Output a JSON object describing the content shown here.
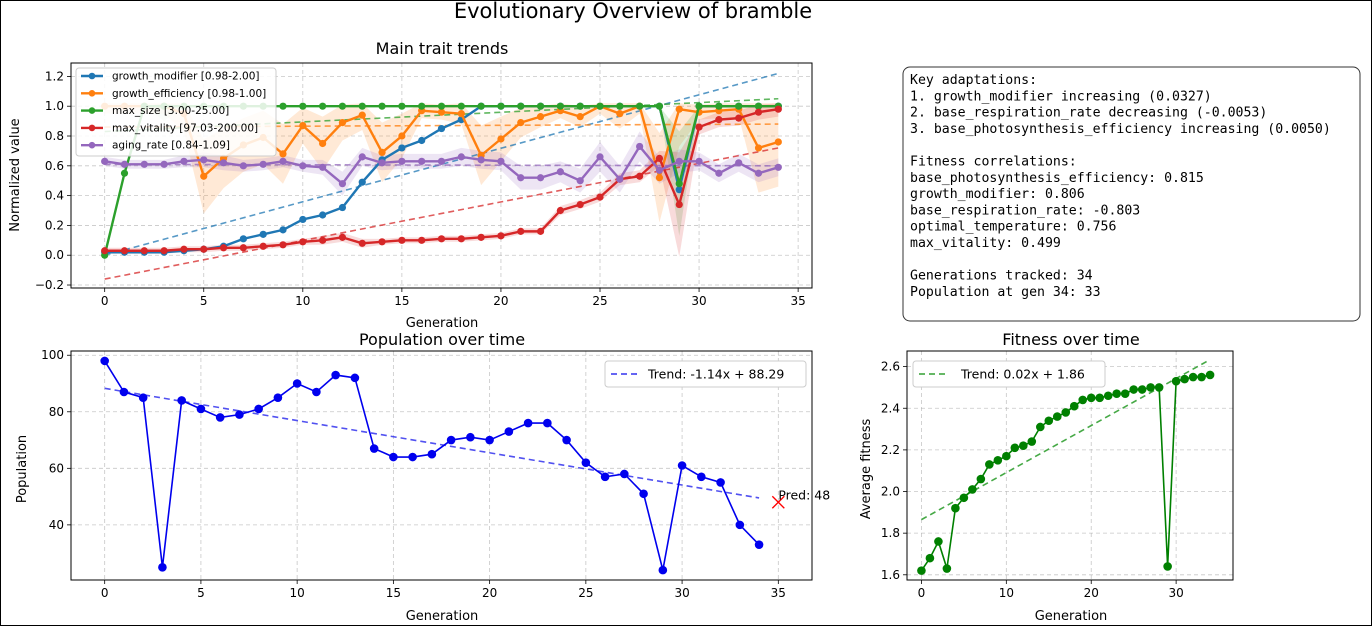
{
  "figure": {
    "title": "Evolutionary Overview of bramble"
  },
  "colors": {
    "blue": "#1f77b4",
    "orange": "#ff7f0e",
    "green": "#2ca02c",
    "red": "#d62728",
    "purple": "#9467bd",
    "pop": "#0000ee",
    "fit": "#008000"
  },
  "summary_lines": [
    "Key adaptations:",
    "1. growth_modifier increasing (0.0327)",
    "2. base_respiration_rate decreasing (-0.0053)",
    "3. base_photosynthesis_efficiency increasing (0.0050)",
    "",
    "Fitness correlations:",
    "base_photosynthesis_efficiency: 0.815",
    "growth_modifier: 0.806",
    "base_respiration_rate: -0.803",
    "optimal_temperature: 0.756",
    "max_vitality: 0.499",
    "",
    "Generations tracked: 34",
    "Population at gen 34: 33"
  ],
  "chart_data": [
    {
      "type": "line",
      "title": "Main trait trends",
      "xlabel": "Generation",
      "ylabel": "Normalized value",
      "xlim": [
        -1.7,
        35.7
      ],
      "ylim": [
        -0.22,
        1.29
      ],
      "xticks": [
        0,
        5,
        10,
        15,
        20,
        25,
        30,
        35
      ],
      "yticks": [
        -0.2,
        0.0,
        0.2,
        0.4,
        0.6,
        0.8,
        1.0,
        1.2
      ],
      "ytick_labels": [
        "−0.2",
        "0.0",
        "0.2",
        "0.4",
        "0.6",
        "0.8",
        "1.0",
        "1.2"
      ],
      "grid": true,
      "legend": "upper-left",
      "x": [
        0,
        1,
        2,
        3,
        4,
        5,
        6,
        7,
        8,
        9,
        10,
        11,
        12,
        13,
        14,
        15,
        16,
        17,
        18,
        19,
        20,
        21,
        22,
        23,
        24,
        25,
        26,
        27,
        28,
        29,
        30,
        31,
        32,
        33,
        34
      ],
      "series": [
        {
          "name": "growth_modifier [0.98-2.00]",
          "color": "#1f77b4",
          "values": [
            0.02,
            0.02,
            0.02,
            0.02,
            0.03,
            0.04,
            0.06,
            0.11,
            0.14,
            0.17,
            0.24,
            0.27,
            0.32,
            0.49,
            0.64,
            0.72,
            0.77,
            0.85,
            0.91,
            1.0,
            1.0,
            1.0,
            1.0,
            1.0,
            1.0,
            1.0,
            1.0,
            1.0,
            1.0,
            0.44,
            1.0,
            1.0,
            1.0,
            1.0,
            1.0
          ],
          "trend": [
            0.0,
            1.22
          ]
        },
        {
          "name": "growth_efficiency [0.98-1.00]",
          "color": "#ff7f0e",
          "values": [
            1.0,
            1.0,
            1.0,
            1.0,
            0.95,
            0.53,
            0.65,
            0.74,
            0.79,
            0.68,
            0.87,
            0.75,
            0.89,
            0.94,
            0.69,
            0.8,
            0.97,
            0.96,
            0.95,
            0.67,
            0.78,
            0.89,
            0.93,
            0.97,
            0.93,
            1.0,
            0.95,
            1.0,
            0.52,
            0.98,
            0.96,
            0.97,
            0.98,
            0.72,
            0.76
          ],
          "band": [
            0.05,
            0.05,
            0.05,
            0.05,
            0.12,
            0.25,
            0.2,
            0.18,
            0.18,
            0.2,
            0.12,
            0.18,
            0.12,
            0.1,
            0.2,
            0.15,
            0.05,
            0.05,
            0.07,
            0.2,
            0.15,
            0.1,
            0.07,
            0.05,
            0.07,
            0.05,
            0.1,
            0.05,
            0.3,
            0.25,
            0.05,
            0.05,
            0.05,
            0.3,
            0.3
          ],
          "trend": [
            0.86,
            0.88
          ]
        },
        {
          "name": "max_size [3.00-25.00]",
          "color": "#2ca02c",
          "values": [
            0.0,
            0.55,
            1.0,
            1.0,
            1.0,
            1.0,
            1.0,
            1.0,
            1.0,
            1.0,
            1.0,
            1.0,
            1.0,
            1.0,
            1.0,
            1.0,
            1.0,
            1.0,
            1.0,
            1.0,
            1.0,
            1.0,
            1.0,
            1.0,
            1.0,
            1.0,
            1.0,
            1.0,
            1.0,
            0.48,
            1.0,
            1.0,
            1.0,
            1.0,
            1.0
          ],
          "band": [
            0,
            0,
            0,
            0.1,
            0,
            0,
            0,
            0,
            0,
            0,
            0,
            0,
            0,
            0,
            0,
            0,
            0,
            0,
            0,
            0,
            0,
            0,
            0,
            0,
            0,
            0,
            0,
            0,
            0,
            0.35,
            0,
            0,
            0,
            0,
            0
          ],
          "trend": [
            0.83,
            1.05
          ]
        },
        {
          "name": "max_vitality [97.03-200.00]",
          "color": "#d62728",
          "values": [
            0.03,
            0.03,
            0.03,
            0.03,
            0.04,
            0.04,
            0.05,
            0.05,
            0.06,
            0.07,
            0.09,
            0.1,
            0.12,
            0.08,
            0.09,
            0.1,
            0.1,
            0.11,
            0.11,
            0.12,
            0.13,
            0.16,
            0.16,
            0.3,
            0.34,
            0.39,
            0.51,
            0.53,
            0.65,
            0.34,
            0.86,
            0.91,
            0.92,
            0.96,
            0.98
          ],
          "band": [
            0.02,
            0.02,
            0.02,
            0.02,
            0.02,
            0.02,
            0.02,
            0.02,
            0.02,
            0.02,
            0.02,
            0.03,
            0.03,
            0.03,
            0.02,
            0.02,
            0.02,
            0.02,
            0.02,
            0.02,
            0.02,
            0.02,
            0.02,
            0.03,
            0.03,
            0.03,
            0.04,
            0.04,
            0.05,
            0.35,
            0.05,
            0.05,
            0.05,
            0.05,
            0.05
          ],
          "trend": [
            -0.16,
            0.72
          ]
        },
        {
          "name": "aging_rate [0.84-1.09]",
          "color": "#9467bd",
          "values": [
            0.63,
            0.61,
            0.61,
            0.61,
            0.63,
            0.64,
            0.62,
            0.6,
            0.61,
            0.63,
            0.6,
            0.59,
            0.48,
            0.66,
            0.62,
            0.63,
            0.63,
            0.63,
            0.66,
            0.64,
            0.63,
            0.52,
            0.52,
            0.56,
            0.5,
            0.66,
            0.51,
            0.73,
            0.57,
            0.63,
            0.63,
            0.55,
            0.62,
            0.55,
            0.59
          ],
          "band": [
            0.03,
            0.03,
            0.03,
            0.03,
            0.04,
            0.05,
            0.05,
            0.04,
            0.04,
            0.04,
            0.04,
            0.05,
            0.08,
            0.06,
            0.05,
            0.05,
            0.05,
            0.05,
            0.06,
            0.06,
            0.06,
            0.08,
            0.08,
            0.07,
            0.08,
            0.1,
            0.09,
            0.1,
            0.09,
            0.08,
            0.06,
            0.06,
            0.06,
            0.06,
            0.06
          ],
          "trend": [
            0.61,
            0.6
          ]
        }
      ]
    },
    {
      "type": "line",
      "title": "Population over time",
      "xlabel": "Generation",
      "ylabel": "Population",
      "xlim": [
        -1.75,
        36.75
      ],
      "ylim": [
        20.5,
        101.5
      ],
      "xticks": [
        0,
        5,
        10,
        15,
        20,
        25,
        30,
        35
      ],
      "yticks": [
        40,
        60,
        80,
        100
      ],
      "grid": true,
      "legend": "upper-right",
      "x": [
        0,
        1,
        2,
        3,
        4,
        5,
        6,
        7,
        8,
        9,
        10,
        11,
        12,
        13,
        14,
        15,
        16,
        17,
        18,
        19,
        20,
        21,
        22,
        23,
        24,
        25,
        26,
        27,
        28,
        29,
        30,
        31,
        32,
        33,
        34
      ],
      "values": [
        98,
        87,
        85,
        25,
        84,
        81,
        78,
        79,
        81,
        85,
        90,
        87,
        93,
        92,
        67,
        64,
        64,
        65,
        70,
        71,
        70,
        73,
        76,
        76,
        70,
        62,
        57,
        58,
        51,
        24,
        61,
        57,
        55,
        40,
        33
      ],
      "trend": {
        "name": "Trend: -1.14x + 88.29",
        "slope": -1.14,
        "intercept": 88.29
      },
      "prediction": {
        "x": 35,
        "y": 48,
        "label": "Pred: 48"
      }
    },
    {
      "type": "line",
      "title": "Fitness over time",
      "xlabel": "Generation",
      "ylabel": "Average fitness",
      "xlim": [
        -1.7,
        36.7
      ],
      "ylim": [
        1.575,
        2.675
      ],
      "xticks": [
        0,
        10,
        20,
        30
      ],
      "yticks": [
        1.6,
        1.8,
        2.0,
        2.2,
        2.4,
        2.6
      ],
      "grid": true,
      "legend": "upper-left",
      "x": [
        0,
        1,
        2,
        3,
        4,
        5,
        6,
        7,
        8,
        9,
        10,
        11,
        12,
        13,
        14,
        15,
        16,
        17,
        18,
        19,
        20,
        21,
        22,
        23,
        24,
        25,
        26,
        27,
        28,
        29,
        30,
        31,
        32,
        33,
        34
      ],
      "values": [
        1.62,
        1.68,
        1.76,
        1.63,
        1.92,
        1.97,
        2.01,
        2.06,
        2.13,
        2.15,
        2.17,
        2.21,
        2.22,
        2.24,
        2.31,
        2.34,
        2.36,
        2.38,
        2.41,
        2.44,
        2.45,
        2.45,
        2.46,
        2.47,
        2.47,
        2.49,
        2.49,
        2.5,
        2.5,
        1.64,
        2.53,
        2.54,
        2.55,
        2.55,
        2.56
      ],
      "trend": {
        "name": "Trend: 0.02x + 1.86",
        "slope": 0.0226,
        "intercept": 1.865
      }
    }
  ]
}
